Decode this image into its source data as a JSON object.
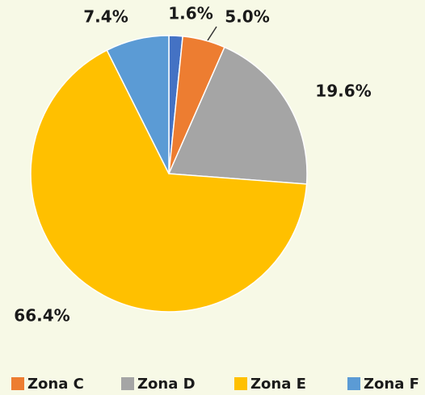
{
  "chart_data": {
    "type": "pie",
    "categories": [
      null,
      "Zona C",
      "Zona D",
      "Zona E",
      "Zona F"
    ],
    "values": [
      1.6,
      5.0,
      19.6,
      66.4,
      7.4
    ],
    "value_labels": [
      "1.6%",
      "5.0%",
      "19.6%",
      "66.4%",
      "7.4%"
    ],
    "colors": [
      "#4472c4",
      "#ed7d31",
      "#a5a5a5",
      "#ffc000",
      "#5b9bd5"
    ],
    "legend": "bottom"
  }
}
